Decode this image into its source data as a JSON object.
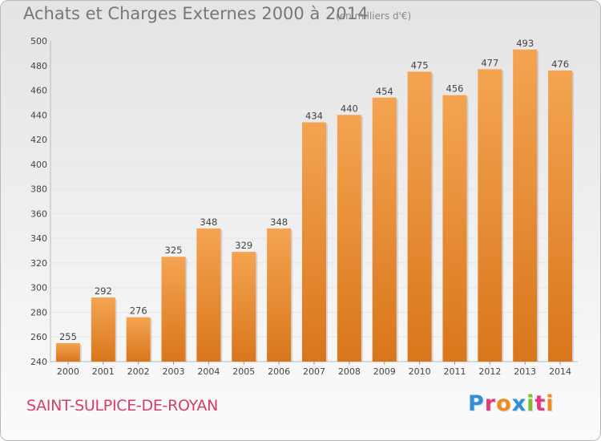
{
  "header": {
    "title": "Achats et Charges Externes 2000 à 2014",
    "subtitle": "(en milliers d'€)"
  },
  "footer": {
    "commune": "SAINT-SULPICE-DE-ROYAN",
    "logo_text": "Proxiti",
    "logo_colors": [
      "#2f8fd8",
      "#e23a7d",
      "#f08a1c",
      "#2f8fd8",
      "#7cbf2c",
      "#e23a7d",
      "#f08a1c"
    ]
  },
  "colors": {
    "bar_top": "#f4a451",
    "bar_bottom": "#d9761c",
    "label_text": "#444444",
    "grid": "#e6e6e6"
  },
  "chart_data": {
    "type": "bar",
    "title": "Achats et Charges Externes 2000 à 2014",
    "subtitle": "(en milliers d'€)",
    "xlabel": "",
    "ylabel": "",
    "categories": [
      "2000",
      "2001",
      "2002",
      "2003",
      "2004",
      "2005",
      "2006",
      "2007",
      "2008",
      "2009",
      "2010",
      "2011",
      "2012",
      "2013",
      "2014"
    ],
    "values": [
      255,
      292,
      276,
      325,
      348,
      329,
      348,
      434,
      440,
      454,
      475,
      456,
      477,
      493,
      476
    ],
    "ylim": [
      240,
      500
    ],
    "yticks": [
      240,
      260,
      280,
      300,
      320,
      340,
      360,
      380,
      400,
      420,
      440,
      460,
      480,
      500
    ],
    "grid": true,
    "legend": "none"
  }
}
